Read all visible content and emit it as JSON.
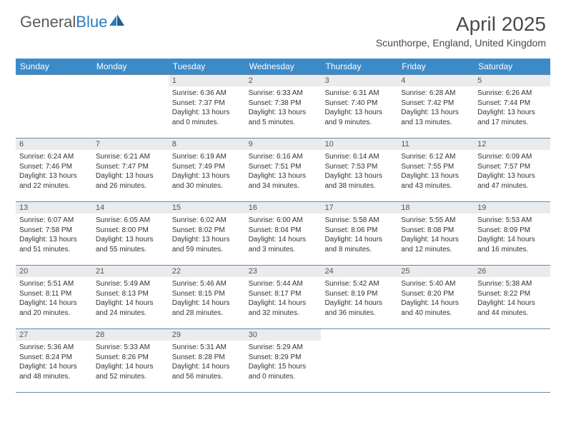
{
  "brand": {
    "part1": "General",
    "part2": "Blue"
  },
  "title": "April 2025",
  "location": "Scunthorpe, England, United Kingdom",
  "colors": {
    "header_bg": "#3b8bc9",
    "daynum_bg": "#e9ecef",
    "rule": "#6a88a5",
    "text": "#333333",
    "logo_gray": "#5a5a5a",
    "logo_blue": "#2d7cc0"
  },
  "dayNames": [
    "Sunday",
    "Monday",
    "Tuesday",
    "Wednesday",
    "Thursday",
    "Friday",
    "Saturday"
  ],
  "weeks": [
    [
      {
        "n": "",
        "lines": []
      },
      {
        "n": "",
        "lines": []
      },
      {
        "n": "1",
        "lines": [
          "Sunrise: 6:36 AM",
          "Sunset: 7:37 PM",
          "Daylight: 13 hours",
          "and 0 minutes."
        ]
      },
      {
        "n": "2",
        "lines": [
          "Sunrise: 6:33 AM",
          "Sunset: 7:38 PM",
          "Daylight: 13 hours",
          "and 5 minutes."
        ]
      },
      {
        "n": "3",
        "lines": [
          "Sunrise: 6:31 AM",
          "Sunset: 7:40 PM",
          "Daylight: 13 hours",
          "and 9 minutes."
        ]
      },
      {
        "n": "4",
        "lines": [
          "Sunrise: 6:28 AM",
          "Sunset: 7:42 PM",
          "Daylight: 13 hours",
          "and 13 minutes."
        ]
      },
      {
        "n": "5",
        "lines": [
          "Sunrise: 6:26 AM",
          "Sunset: 7:44 PM",
          "Daylight: 13 hours",
          "and 17 minutes."
        ]
      }
    ],
    [
      {
        "n": "6",
        "lines": [
          "Sunrise: 6:24 AM",
          "Sunset: 7:46 PM",
          "Daylight: 13 hours",
          "and 22 minutes."
        ]
      },
      {
        "n": "7",
        "lines": [
          "Sunrise: 6:21 AM",
          "Sunset: 7:47 PM",
          "Daylight: 13 hours",
          "and 26 minutes."
        ]
      },
      {
        "n": "8",
        "lines": [
          "Sunrise: 6:19 AM",
          "Sunset: 7:49 PM",
          "Daylight: 13 hours",
          "and 30 minutes."
        ]
      },
      {
        "n": "9",
        "lines": [
          "Sunrise: 6:16 AM",
          "Sunset: 7:51 PM",
          "Daylight: 13 hours",
          "and 34 minutes."
        ]
      },
      {
        "n": "10",
        "lines": [
          "Sunrise: 6:14 AM",
          "Sunset: 7:53 PM",
          "Daylight: 13 hours",
          "and 38 minutes."
        ]
      },
      {
        "n": "11",
        "lines": [
          "Sunrise: 6:12 AM",
          "Sunset: 7:55 PM",
          "Daylight: 13 hours",
          "and 43 minutes."
        ]
      },
      {
        "n": "12",
        "lines": [
          "Sunrise: 6:09 AM",
          "Sunset: 7:57 PM",
          "Daylight: 13 hours",
          "and 47 minutes."
        ]
      }
    ],
    [
      {
        "n": "13",
        "lines": [
          "Sunrise: 6:07 AM",
          "Sunset: 7:58 PM",
          "Daylight: 13 hours",
          "and 51 minutes."
        ]
      },
      {
        "n": "14",
        "lines": [
          "Sunrise: 6:05 AM",
          "Sunset: 8:00 PM",
          "Daylight: 13 hours",
          "and 55 minutes."
        ]
      },
      {
        "n": "15",
        "lines": [
          "Sunrise: 6:02 AM",
          "Sunset: 8:02 PM",
          "Daylight: 13 hours",
          "and 59 minutes."
        ]
      },
      {
        "n": "16",
        "lines": [
          "Sunrise: 6:00 AM",
          "Sunset: 8:04 PM",
          "Daylight: 14 hours",
          "and 3 minutes."
        ]
      },
      {
        "n": "17",
        "lines": [
          "Sunrise: 5:58 AM",
          "Sunset: 8:06 PM",
          "Daylight: 14 hours",
          "and 8 minutes."
        ]
      },
      {
        "n": "18",
        "lines": [
          "Sunrise: 5:55 AM",
          "Sunset: 8:08 PM",
          "Daylight: 14 hours",
          "and 12 minutes."
        ]
      },
      {
        "n": "19",
        "lines": [
          "Sunrise: 5:53 AM",
          "Sunset: 8:09 PM",
          "Daylight: 14 hours",
          "and 16 minutes."
        ]
      }
    ],
    [
      {
        "n": "20",
        "lines": [
          "Sunrise: 5:51 AM",
          "Sunset: 8:11 PM",
          "Daylight: 14 hours",
          "and 20 minutes."
        ]
      },
      {
        "n": "21",
        "lines": [
          "Sunrise: 5:49 AM",
          "Sunset: 8:13 PM",
          "Daylight: 14 hours",
          "and 24 minutes."
        ]
      },
      {
        "n": "22",
        "lines": [
          "Sunrise: 5:46 AM",
          "Sunset: 8:15 PM",
          "Daylight: 14 hours",
          "and 28 minutes."
        ]
      },
      {
        "n": "23",
        "lines": [
          "Sunrise: 5:44 AM",
          "Sunset: 8:17 PM",
          "Daylight: 14 hours",
          "and 32 minutes."
        ]
      },
      {
        "n": "24",
        "lines": [
          "Sunrise: 5:42 AM",
          "Sunset: 8:19 PM",
          "Daylight: 14 hours",
          "and 36 minutes."
        ]
      },
      {
        "n": "25",
        "lines": [
          "Sunrise: 5:40 AM",
          "Sunset: 8:20 PM",
          "Daylight: 14 hours",
          "and 40 minutes."
        ]
      },
      {
        "n": "26",
        "lines": [
          "Sunrise: 5:38 AM",
          "Sunset: 8:22 PM",
          "Daylight: 14 hours",
          "and 44 minutes."
        ]
      }
    ],
    [
      {
        "n": "27",
        "lines": [
          "Sunrise: 5:36 AM",
          "Sunset: 8:24 PM",
          "Daylight: 14 hours",
          "and 48 minutes."
        ]
      },
      {
        "n": "28",
        "lines": [
          "Sunrise: 5:33 AM",
          "Sunset: 8:26 PM",
          "Daylight: 14 hours",
          "and 52 minutes."
        ]
      },
      {
        "n": "29",
        "lines": [
          "Sunrise: 5:31 AM",
          "Sunset: 8:28 PM",
          "Daylight: 14 hours",
          "and 56 minutes."
        ]
      },
      {
        "n": "30",
        "lines": [
          "Sunrise: 5:29 AM",
          "Sunset: 8:29 PM",
          "Daylight: 15 hours",
          "and 0 minutes."
        ]
      },
      {
        "n": "",
        "lines": []
      },
      {
        "n": "",
        "lines": []
      },
      {
        "n": "",
        "lines": []
      }
    ]
  ]
}
